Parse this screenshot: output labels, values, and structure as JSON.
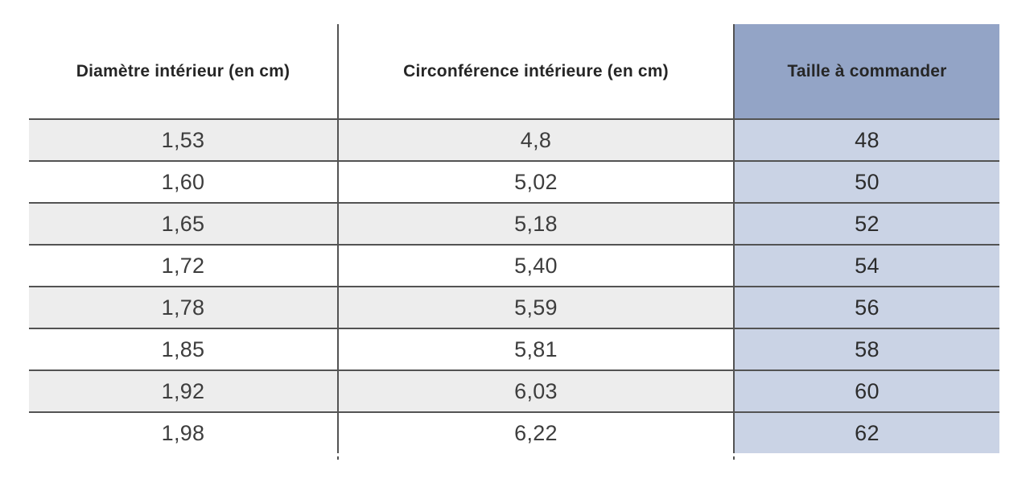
{
  "table": {
    "columns": [
      {
        "label": "Diamètre intérieur (en cm)"
      },
      {
        "label": "Circonférence intérieure (en cm)"
      },
      {
        "label": "Taille à commander"
      }
    ],
    "rows": [
      {
        "diameter": "1,53",
        "circumference": "4,8",
        "size": "48"
      },
      {
        "diameter": "1,60",
        "circumference": "5,02",
        "size": "50"
      },
      {
        "diameter": "1,65",
        "circumference": "5,18",
        "size": "52"
      },
      {
        "diameter": "1,72",
        "circumference": "5,40",
        "size": "54"
      },
      {
        "diameter": "1,78",
        "circumference": "5,59",
        "size": "56"
      },
      {
        "diameter": "1,85",
        "circumference": "5,81",
        "size": "58"
      },
      {
        "diameter": "1,92",
        "circumference": "6,03",
        "size": "60"
      },
      {
        "diameter": "1,98",
        "circumference": "6,22",
        "size": "62"
      }
    ],
    "colors": {
      "header_blue": "#93a4c6",
      "size_cell_blue": "#cad3e5",
      "zebra_gray": "#ededed",
      "rule_dark": "#535353"
    }
  },
  "chart_data": {
    "type": "table",
    "title": "",
    "columns": [
      "Diamètre intérieur (en cm)",
      "Circonférence intérieure (en cm)",
      "Taille à commander"
    ],
    "rows": [
      [
        "1,53",
        "4,8",
        "48"
      ],
      [
        "1,60",
        "5,02",
        "50"
      ],
      [
        "1,65",
        "5,18",
        "52"
      ],
      [
        "1,72",
        "5,40",
        "54"
      ],
      [
        "1,78",
        "5,59",
        "56"
      ],
      [
        "1,85",
        "5,81",
        "58"
      ],
      [
        "1,92",
        "6,03",
        "60"
      ],
      [
        "1,98",
        "6,22",
        "62"
      ]
    ],
    "layout_hints": {
      "zebra_striping": true,
      "highlighted_column": "Taille à commander",
      "header_fill": "#93a4c6",
      "highlight_fill": "#cad3e5"
    }
  }
}
